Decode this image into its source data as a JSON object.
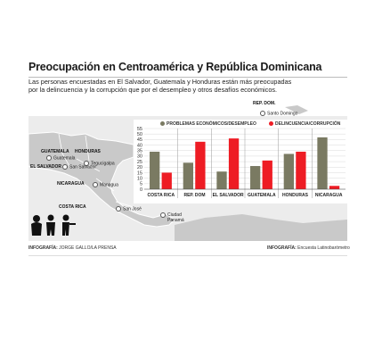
{
  "header": {
    "title": "Preocupación en Centroamérica y República Dominicana",
    "subtitle": "Las personas encuestadas en El Salvador, Guatemala y Honduras están más preocupadas por la delincuencia y la corrupción que por el desempleo y otros desafíos económicos."
  },
  "map_labels": {
    "rep_dom": "REP. DOM.",
    "santo_domingo": "Santo Domingo",
    "guatemala_country": "GUATEMALA",
    "guatemala_city": "Guatemala",
    "honduras_country": "HONDURAS",
    "tegucigalpa": "Tegucigalpa",
    "el_salvador_country": "EL SALVADOR",
    "san_salvador": "San Salvador",
    "nicaragua_country": "NICARAGUA",
    "managua": "Managua",
    "costa_rica_country": "COSTA RICA",
    "san_jose": "San José",
    "panama_city": "Ciudad Panamá"
  },
  "credits": {
    "infografia_label": "INFOGRAFÍA:",
    "infografia_author": "JORGE GALLO/LA PRENSA",
    "fuente_label": "INFOGRAFÍA:",
    "fuente": "Encuesta Latinobarómetro"
  },
  "colors": {
    "economic": "#7a7a62",
    "crime": "#ee1c24",
    "land": "#c9c9c9",
    "map_bg": "#ececec"
  },
  "chart_data": {
    "type": "bar",
    "categories": [
      "COSTA RICA",
      "REP. DOM",
      "EL SALVADOR",
      "GUATEMALA",
      "HONDURAS",
      "NICARAGUA"
    ],
    "series": [
      {
        "name": "PROBLEMAS ECONÓMICOS/DESEMPLEO",
        "values": [
          34,
          24,
          16,
          21,
          32,
          47
        ]
      },
      {
        "name": "DELINCUENCIA/CORRUPCIÓN",
        "values": [
          15,
          43,
          46,
          26,
          34,
          3
        ]
      }
    ],
    "yticks": [
      0,
      5,
      10,
      15,
      20,
      25,
      30,
      35,
      40,
      45,
      50,
      55
    ],
    "ylim": [
      0,
      55
    ],
    "grid": true,
    "legend": "top"
  }
}
